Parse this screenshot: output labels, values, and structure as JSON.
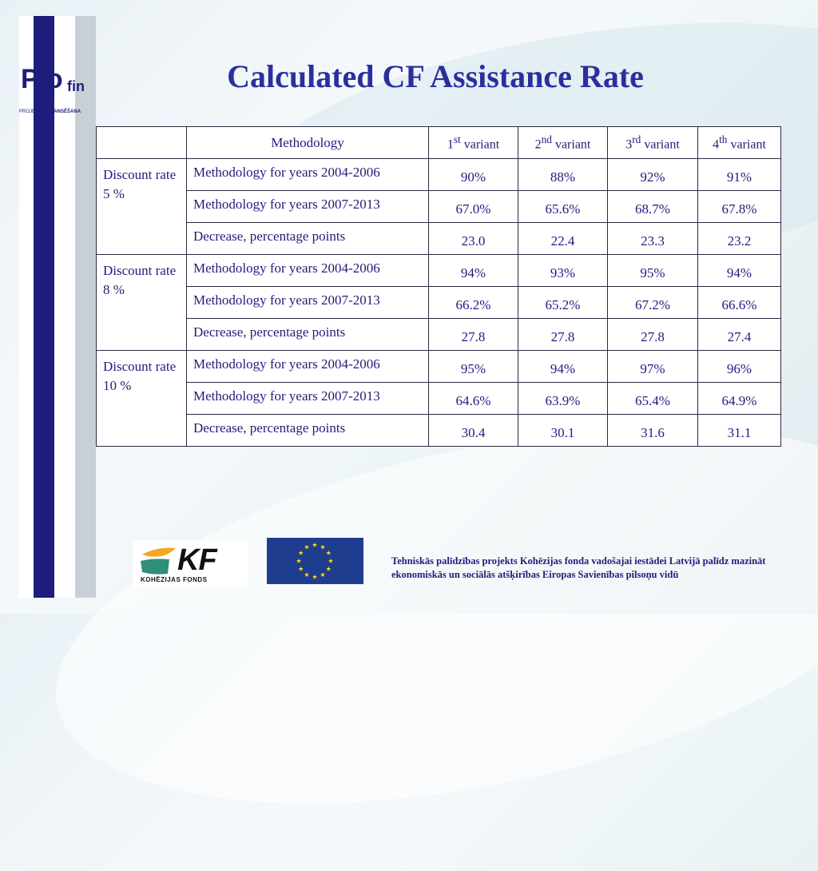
{
  "logo": {
    "letters": "Pro",
    "letters2": "fin",
    "subtitle_left": "PROJEKTU",
    "subtitle_right": "FINANSĒŠANA"
  },
  "title": "Calculated CF Assistance Rate",
  "table": {
    "header": {
      "methodology": "Methodology",
      "variants": [
        {
          "num": "1",
          "sup": "st",
          "label": " variant"
        },
        {
          "num": "2",
          "sup": "nd",
          "label": " variant"
        },
        {
          "num": "3",
          "sup": "rd",
          "label": " variant"
        },
        {
          "num": "4",
          "sup": "th",
          "label": " variant"
        }
      ]
    },
    "groups": [
      {
        "label": "Discount rate 5 %",
        "rows": [
          {
            "method": "Methodology for years 2004-2006",
            "values": [
              "90%",
              "88%",
              "92%",
              "91%"
            ]
          },
          {
            "method": "Methodology for years 2007-2013",
            "values": [
              "67.0%",
              "65.6%",
              "68.7%",
              "67.8%"
            ]
          },
          {
            "method": "Decrease, percentage points",
            "values": [
              "23.0",
              "22.4",
              "23.3",
              "23.2"
            ]
          }
        ]
      },
      {
        "label": "Discount rate 8 %",
        "rows": [
          {
            "method": "Methodology for years 2004-2006",
            "values": [
              "94%",
              "93%",
              "95%",
              "94%"
            ]
          },
          {
            "method": "Methodology for years 2007-2013",
            "values": [
              "66.2%",
              "65.2%",
              "67.2%",
              "66.6%"
            ]
          },
          {
            "method": "Decrease, percentage points",
            "values": [
              "27.8",
              "27.8",
              "27.8",
              "27.4"
            ]
          }
        ]
      },
      {
        "label": "Discount rate 10 %",
        "rows": [
          {
            "method": "Methodology for years 2004-2006",
            "values": [
              "95%",
              "94%",
              "97%",
              "96%"
            ]
          },
          {
            "method": "Methodology for years 2007-2013",
            "values": [
              "64.6%",
              "63.9%",
              "65.4%",
              "64.9%"
            ]
          },
          {
            "method": "Decrease, percentage points",
            "values": [
              "30.4",
              "30.1",
              "31.6",
              "31.1"
            ]
          }
        ]
      }
    ]
  },
  "footer": {
    "kf_logo_letters": "KF",
    "kf_logo_caption": "KOHĒZIJAS FONDS",
    "text": "Tehniskās palīdzības projekts Kohēzijas fonda vadošajai iestādei Latvijā palīdz mazināt ekonomiskās un sociālās atšķirības Eiropas Savienības pilsoņu vidū"
  },
  "colors": {
    "navy": "#1f1d7c",
    "title_blue": "#2b2f9e",
    "eu_blue": "#1f3d8f",
    "eu_star": "#ffdd00",
    "kf_orange": "#f5a623",
    "kf_teal": "#2f8f7a"
  }
}
